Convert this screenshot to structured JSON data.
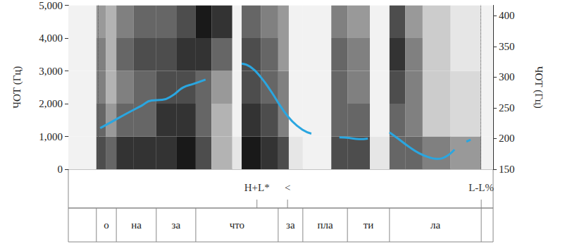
{
  "chart_data": {
    "type": "line",
    "ylabel": "ЧОТ (Гц)",
    "y2label": "ЧОТ (Гц)",
    "xlim": [
      0,
      1
    ],
    "ylim": [
      0,
      5000
    ],
    "yticks": [
      0,
      1000,
      2000,
      3000,
      4000,
      5000
    ],
    "y2lim": [
      150,
      417
    ],
    "y2ticks": [
      150,
      200,
      250,
      300,
      350,
      400
    ],
    "grid": false,
    "tick_labels": "y",
    "x": [
      0.075,
      0.104,
      0.138,
      0.171,
      0.196,
      0.221,
      0.245,
      0.27,
      0.295,
      0.323,
      0.365,
      0.408,
      0.428,
      0.453,
      0.478,
      0.502,
      0.527,
      0.552,
      0.572,
      0.605,
      0.638,
      0.66,
      0.685,
      0.705,
      0.73,
      0.756,
      0.776,
      0.801,
      0.826,
      0.851,
      0.867,
      0.887,
      0.909,
      0.923,
      0.937,
      0.947
    ],
    "series": [
      {
        "axis": "y2",
        "color": "#2aa6e0",
        "line_style": "solid",
        "values": [
          217,
          228,
          241,
          253,
          262,
          263,
          270,
          283,
          289,
          296,
          null,
          322,
          317,
          300,
          276,
          250,
          228,
          214,
          208,
          null,
          202,
          201,
          199,
          200,
          null,
          210,
          200,
          187,
          176,
          169,
          167,
          170,
          182,
          null,
          195,
          198
        ]
      }
    ],
    "spectrogram": {
      "x_edges": [
        0,
        0.066,
        0.088,
        0.113,
        0.154,
        0.207,
        0.254,
        0.3,
        0.337,
        0.386,
        0.408,
        0.453,
        0.494,
        0.519,
        0.552,
        0.619,
        0.657,
        0.71,
        0.756,
        0.793,
        0.834,
        0.9,
        0.972,
        1
      ],
      "y_edges": [
        0,
        1000,
        2000,
        3000,
        4000,
        5000
      ],
      "intensity": [
        [
          0.05,
          0.05,
          0.05,
          0.05,
          0.05
        ],
        [
          0.7,
          0.6,
          0.5,
          0.5,
          0.4
        ],
        [
          0.6,
          0.4,
          0.3,
          0.3,
          0.3
        ],
        [
          0.8,
          0.6,
          0.5,
          0.6,
          0.5
        ],
        [
          0.8,
          0.6,
          0.6,
          0.7,
          0.6
        ],
        [
          0.8,
          0.8,
          0.7,
          0.7,
          0.6
        ],
        [
          0.9,
          0.8,
          0.7,
          0.8,
          0.7
        ],
        [
          0.7,
          0.6,
          0.6,
          0.8,
          0.9
        ],
        [
          0.3,
          0.3,
          0.4,
          0.6,
          0.8
        ],
        [
          0.1,
          0.05,
          0.05,
          0.05,
          0.05
        ],
        [
          0.9,
          0.8,
          0.7,
          0.7,
          0.6
        ],
        [
          0.8,
          0.7,
          0.6,
          0.6,
          0.5
        ],
        [
          0.7,
          0.5,
          0.5,
          0.4,
          0.4
        ],
        [
          0.1,
          0.05,
          0.05,
          0.05,
          0.05
        ],
        [
          0.05,
          0.05,
          0.05,
          0.05,
          0.05
        ],
        [
          0.7,
          0.6,
          0.6,
          0.6,
          0.5
        ],
        [
          0.7,
          0.6,
          0.5,
          0.5,
          0.4
        ],
        [
          0.1,
          0.05,
          0.05,
          0.05,
          0.05
        ],
        [
          0.6,
          0.6,
          0.7,
          0.8,
          0.7
        ],
        [
          0.6,
          0.5,
          0.5,
          0.5,
          0.4
        ],
        [
          0.5,
          0.2,
          0.2,
          0.2,
          0.2
        ],
        [
          0.4,
          0.15,
          0.15,
          0.1,
          0.1
        ],
        [
          0.05,
          0.05,
          0.05,
          0.05,
          0.05
        ]
      ]
    },
    "tones": [
      {
        "x": 0.444,
        "label": "H+L*"
      },
      {
        "x": 0.516,
        "label": "<"
      },
      {
        "x": 0.972,
        "label": "L-L%"
      }
    ],
    "syllables": {
      "boundaries": [
        0.066,
        0.113,
        0.207,
        0.3,
        0.494,
        0.552,
        0.657,
        0.756,
        0.972
      ],
      "labels": [
        "о",
        "на",
        "за",
        "что",
        "за",
        "пла",
        "ти",
        "ла"
      ]
    }
  }
}
